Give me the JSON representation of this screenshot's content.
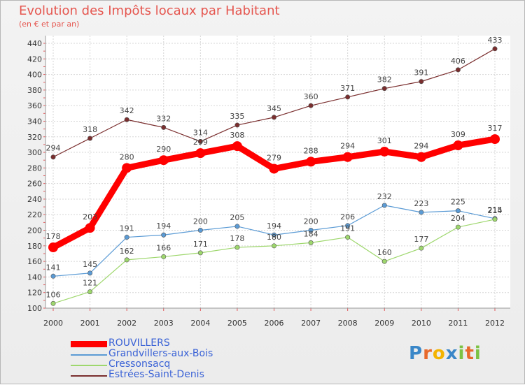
{
  "header": {
    "title": "Evolution des Impôts locaux par Habitant",
    "subtitle": "(en € et par an)"
  },
  "logo": {
    "letters": [
      "P",
      "r",
      "o",
      "x",
      "i",
      "t",
      "i"
    ],
    "colors": [
      "#3a87c8",
      "#e8692b",
      "#f4b400",
      "#3a87c8",
      "#7cc243",
      "#e8692b",
      "#7cc243"
    ]
  },
  "chart_data": {
    "type": "line",
    "title": "Evolution des Impôts locaux par Habitant",
    "subtitle": "(en € et par an)",
    "xlabel": "",
    "ylabel": "",
    "x": [
      "2000",
      "2001",
      "2002",
      "2003",
      "2004",
      "2005",
      "2006",
      "2007",
      "2008",
      "2009",
      "2010",
      "2011",
      "2012"
    ],
    "ylim": [
      100,
      440
    ],
    "yticks": [
      "100",
      "120",
      "140",
      "160",
      "180",
      "200",
      "220",
      "240",
      "260",
      "280",
      "300",
      "320",
      "340",
      "360",
      "380",
      "400",
      "420",
      "440"
    ],
    "grid": true,
    "legend_position": "bottom-left",
    "series": [
      {
        "name": "ROUVILLERS",
        "color": "#ff0000",
        "emphasis": true,
        "values": [
          178,
          203,
          280,
          290,
          299,
          308,
          279,
          288,
          294,
          301,
          294,
          309,
          317
        ]
      },
      {
        "name": "Grandvillers-aux-Bois",
        "color": "#5b9bd5",
        "emphasis": false,
        "values": [
          141,
          145,
          191,
          194,
          200,
          205,
          194,
          200,
          206,
          232,
          223,
          225,
          215
        ]
      },
      {
        "name": "Cressonsacq",
        "color": "#9ed76d",
        "emphasis": false,
        "values": [
          106,
          121,
          162,
          166,
          171,
          178,
          180,
          184,
          191,
          160,
          177,
          204,
          214
        ]
      },
      {
        "name": "Estrées-Saint-Denis",
        "color": "#7a2e2e",
        "emphasis": false,
        "values": [
          294,
          318,
          342,
          332,
          314,
          335,
          345,
          360,
          371,
          382,
          391,
          406,
          433
        ]
      }
    ]
  }
}
